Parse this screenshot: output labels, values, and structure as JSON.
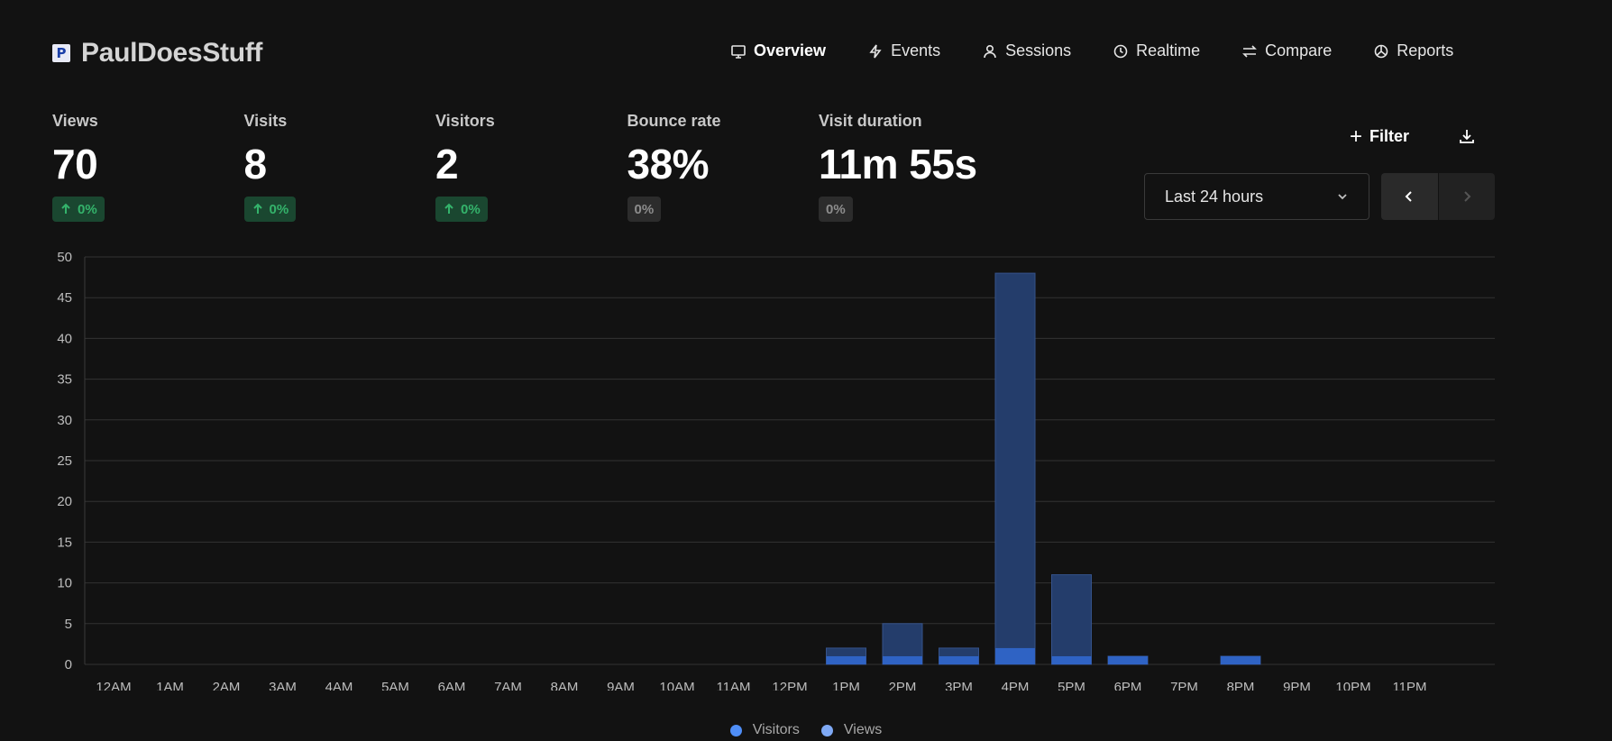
{
  "brand": {
    "logo_glyph": "P",
    "name": "PaulDoesStuff"
  },
  "nav": [
    {
      "label": "Overview",
      "icon": "monitor-icon",
      "active": true
    },
    {
      "label": "Events",
      "icon": "lightning-icon",
      "active": false
    },
    {
      "label": "Sessions",
      "icon": "user-icon",
      "active": false
    },
    {
      "label": "Realtime",
      "icon": "clock-icon",
      "active": false
    },
    {
      "label": "Compare",
      "icon": "swap-icon",
      "active": false
    },
    {
      "label": "Reports",
      "icon": "pie-chart-icon",
      "active": false
    }
  ],
  "metrics": [
    {
      "label": "Views",
      "value": "70",
      "change": "0%",
      "trend": "up"
    },
    {
      "label": "Visits",
      "value": "8",
      "change": "0%",
      "trend": "up"
    },
    {
      "label": "Visitors",
      "value": "2",
      "change": "0%",
      "trend": "up"
    },
    {
      "label": "Bounce rate",
      "value": "38%",
      "change": "0%",
      "trend": "neutral"
    },
    {
      "label": "Visit duration",
      "value": "11m 55s",
      "change": "0%",
      "trend": "neutral"
    }
  ],
  "controls": {
    "filter_label": "Filter",
    "date_range": "Last 24 hours"
  },
  "colors": {
    "visitors": "#4f8ef7",
    "views": "#7fa9f5",
    "views_bar": "#243d6b",
    "visitors_bar": "#2f63c4",
    "bar_stroke": "#35528a"
  },
  "chart_data": {
    "type": "bar",
    "categories": [
      "12AM",
      "1AM",
      "2AM",
      "3AM",
      "4AM",
      "5AM",
      "6AM",
      "7AM",
      "8AM",
      "9AM",
      "10AM",
      "11AM",
      "12PM",
      "1PM",
      "2PM",
      "3PM",
      "4PM",
      "5PM",
      "6PM",
      "7PM",
      "8PM",
      "9PM",
      "10PM",
      "11PM"
    ],
    "series": [
      {
        "name": "Visitors",
        "values": [
          0,
          0,
          0,
          0,
          0,
          0,
          0,
          0,
          0,
          0,
          0,
          0,
          0,
          1,
          1,
          1,
          2,
          1,
          1,
          0,
          1,
          0,
          0,
          0
        ]
      },
      {
        "name": "Views",
        "values": [
          0,
          0,
          0,
          0,
          0,
          0,
          0,
          0,
          0,
          0,
          0,
          0,
          0,
          2,
          5,
          2,
          48,
          11,
          1,
          0,
          1,
          0,
          0,
          0
        ]
      }
    ],
    "ylim": [
      0,
      50
    ],
    "yticks": [
      0,
      5,
      10,
      15,
      20,
      25,
      30,
      35,
      40,
      45,
      50
    ],
    "grid": true,
    "legend_position": "bottom"
  }
}
